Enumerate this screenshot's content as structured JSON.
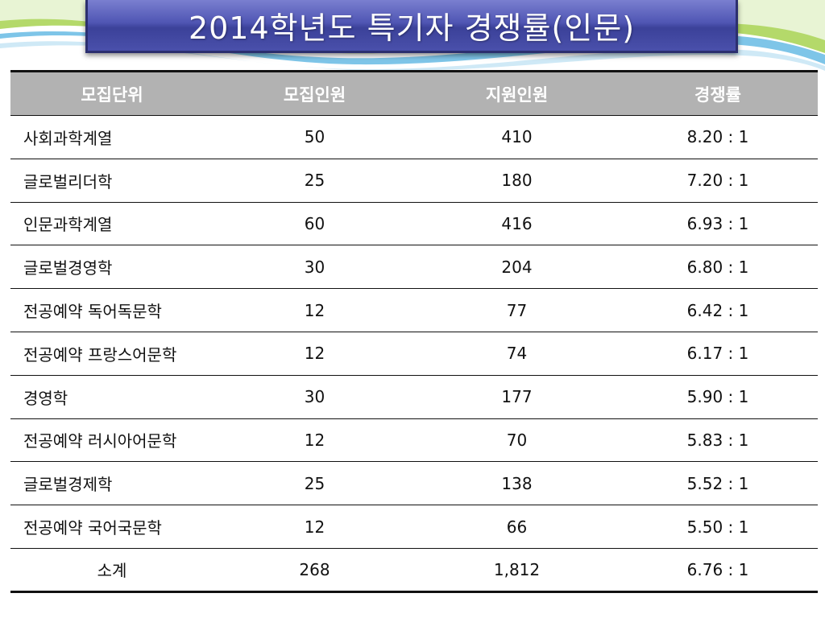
{
  "title": "2014학년도 특기자 경쟁률(인문)",
  "colors": {
    "header_bg": "#b2b2b2",
    "banner": "#4f55b3",
    "swoosh_green": "#b4d96a",
    "swoosh_blue": "#7ec5e8"
  },
  "table": {
    "headers": [
      "모집단위",
      "모집인원",
      "지원인원",
      "경쟁률"
    ],
    "rows": [
      [
        "사회과학계열",
        "50",
        "410",
        "8.20 : 1"
      ],
      [
        "글로벌리더학",
        "25",
        "180",
        "7.20 : 1"
      ],
      [
        "인문과학계열",
        "60",
        "416",
        "6.93 : 1"
      ],
      [
        "글로벌경영학",
        "30",
        "204",
        "6.80 : 1"
      ],
      [
        "전공예약 독어독문학",
        "12",
        "77",
        "6.42 : 1"
      ],
      [
        "전공예약 프랑스어문학",
        "12",
        "74",
        "6.17 : 1"
      ],
      [
        "경영학",
        "30",
        "177",
        "5.90 : 1"
      ],
      [
        "전공예약 러시아어문학",
        "12",
        "70",
        "5.83 : 1"
      ],
      [
        "글로벌경제학",
        "25",
        "138",
        "5.52 : 1"
      ],
      [
        "전공예약 국어국문학",
        "12",
        "66",
        "5.50 : 1"
      ],
      [
        "소계",
        "268",
        "1,812",
        "6.76 : 1"
      ]
    ]
  }
}
